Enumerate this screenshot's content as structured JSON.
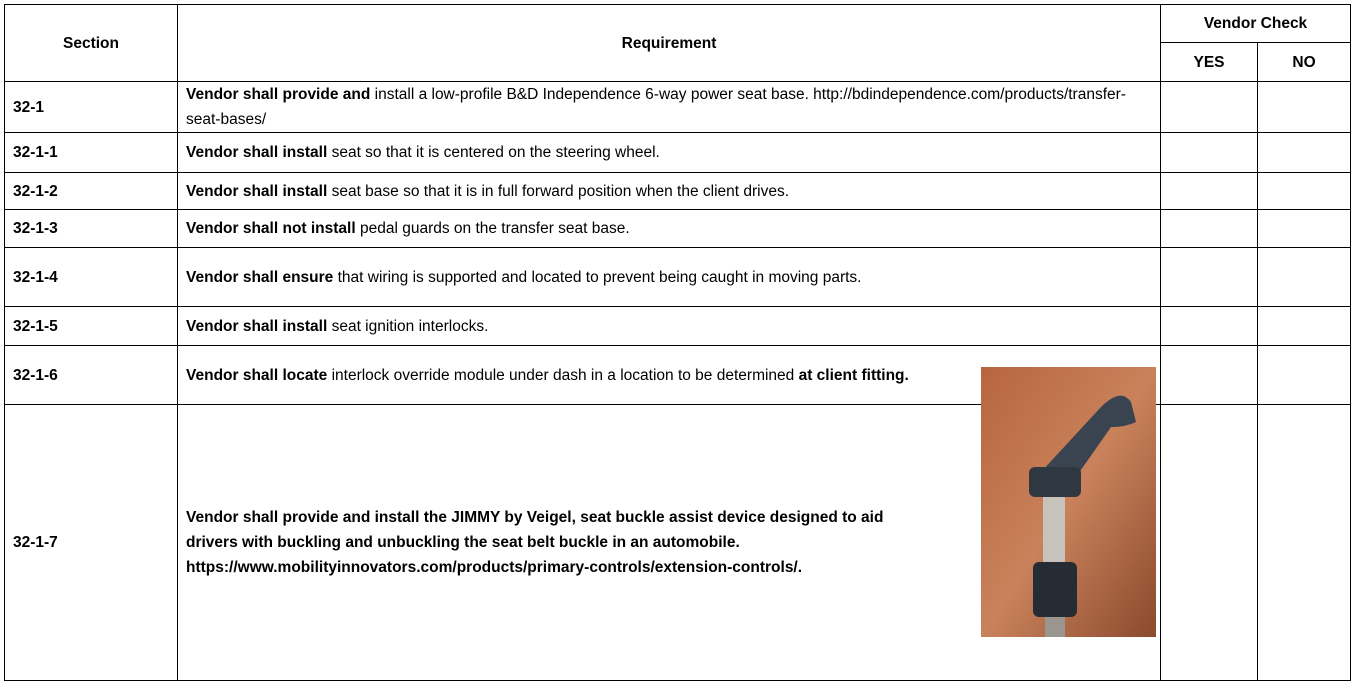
{
  "table": {
    "headers": {
      "section": "Section",
      "requirement": "Requirement",
      "vendor_check": "Vendor Check",
      "yes": "YES",
      "no": "NO"
    },
    "rows": [
      {
        "section": "32-1",
        "requirement": [
          {
            "text": "Vendor shall provide and",
            "bold": true
          },
          {
            "text": " install a low-profile B&D Independence 6-way power seat base. http://bdindependence.com/products/transfer-seat-bases/",
            "bold": false
          }
        ]
      },
      {
        "section": "32-1-1",
        "requirement": [
          {
            "text": "Vendor shall install",
            "bold": true
          },
          {
            "text": " seat so that it is centered on the steering wheel.",
            "bold": false
          }
        ]
      },
      {
        "section": "32-1-2",
        "requirement": [
          {
            "text": "Vendor shall install",
            "bold": true
          },
          {
            "text": " seat base so that it is in full forward position when the client drives.",
            "bold": false
          }
        ]
      },
      {
        "section": "32-1-3",
        "requirement": [
          {
            "text": "Vendor shall not install",
            "bold": true
          },
          {
            "text": " pedal guards on the transfer seat base.",
            "bold": false
          }
        ]
      },
      {
        "section": "32-1-4",
        "requirement": [
          {
            "text": "Vendor shall ensure",
            "bold": true
          },
          {
            "text": " that wiring is supported and located to prevent being caught in moving parts.",
            "bold": false
          }
        ]
      },
      {
        "section": "32-1-5",
        "requirement": [
          {
            "text": "Vendor shall install",
            "bold": true
          },
          {
            "text": " seat ignition interlocks.",
            "bold": false
          }
        ]
      },
      {
        "section": "32-1-6",
        "requirement": [
          {
            "text": "Vendor shall locate",
            "bold": true
          },
          {
            "text": " interlock override module under dash in a location to be determined ",
            "bold": false
          },
          {
            "text": "at client fitting.",
            "bold": true
          }
        ]
      },
      {
        "section": "32-1-7",
        "requirement": [
          {
            "text": "Vendor shall provide and install the JIMMY by Veigel, seat buckle assist device designed to aid drivers with buckling and unbuckling the seat belt buckle in an automobile. https://www.mobilityinnovators.com/products/primary-controls/extension-controls/.",
            "bold": true
          }
        ]
      }
    ]
  }
}
